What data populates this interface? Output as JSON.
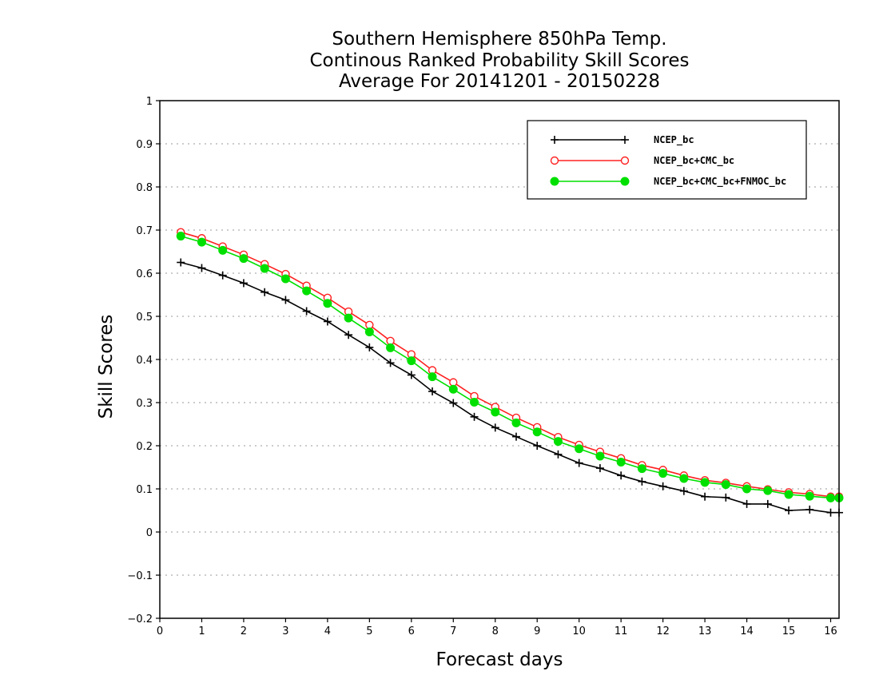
{
  "chart_data": {
    "type": "line",
    "title": [
      "Southern Hemisphere 850hPa Temp.",
      "Continous Ranked Probability Skill Scores",
      "Average For 20141201 - 20150228"
    ],
    "xlabel": "Forecast days",
    "ylabel": "Skill Scores",
    "xlim": [
      0,
      16.2
    ],
    "ylim": [
      -0.2,
      1
    ],
    "xticks": [
      0,
      1,
      2,
      3,
      4,
      5,
      6,
      7,
      8,
      9,
      10,
      11,
      12,
      13,
      14,
      15,
      16
    ],
    "xtick_labels": [
      "0",
      "1",
      "2",
      "3",
      "4",
      "5",
      "6",
      "7",
      "8",
      "9",
      "10",
      "11",
      "12",
      "13",
      "14",
      "15",
      "16"
    ],
    "yticks": [
      -0.2,
      -0.1,
      0,
      0.1,
      0.2,
      0.3,
      0.4,
      0.5,
      0.6,
      0.7,
      0.8,
      0.9,
      1
    ],
    "ytick_labels": [
      "−0.2",
      "−0.1",
      "0",
      "0.1",
      "0.2",
      "0.3",
      "0.4",
      "0.5",
      "0.6",
      "0.7",
      "0.8",
      "0.9",
      "1"
    ],
    "grid": true,
    "legend_position": "top-right",
    "x": [
      0.5,
      1,
      1.5,
      2,
      2.5,
      3,
      3.5,
      4,
      4.5,
      5,
      5.5,
      6,
      6.5,
      7,
      7.5,
      8,
      8.5,
      9,
      9.5,
      10,
      10.5,
      11,
      11.5,
      12,
      12.5,
      13,
      13.5,
      14,
      14.5,
      15,
      15.5,
      16,
      16.2
    ],
    "series": [
      {
        "name": "NCEP_bc",
        "color": "#000000",
        "marker": "plus",
        "values": [
          0.625,
          0.612,
          0.595,
          0.577,
          0.556,
          0.538,
          0.512,
          0.488,
          0.457,
          0.428,
          0.392,
          0.364,
          0.326,
          0.299,
          0.267,
          0.242,
          0.221,
          0.2,
          0.18,
          0.16,
          0.148,
          0.131,
          0.117,
          0.106,
          0.095,
          0.082,
          0.08,
          0.065,
          0.065,
          0.05,
          0.052,
          0.045,
          0.045
        ]
      },
      {
        "name": "NCEP_bc+CMC_bc",
        "color": "#ff2020",
        "marker": "open-circle",
        "values": [
          0.695,
          0.681,
          0.662,
          0.643,
          0.621,
          0.598,
          0.571,
          0.543,
          0.511,
          0.48,
          0.443,
          0.412,
          0.375,
          0.347,
          0.315,
          0.29,
          0.265,
          0.243,
          0.22,
          0.202,
          0.186,
          0.171,
          0.155,
          0.144,
          0.131,
          0.12,
          0.114,
          0.106,
          0.099,
          0.092,
          0.088,
          0.082,
          0.082
        ]
      },
      {
        "name": "NCEP_bc+CMC_bc+FNMOC_bc",
        "color": "#00e000",
        "marker": "filled-circle",
        "values": [
          0.686,
          0.672,
          0.653,
          0.634,
          0.611,
          0.587,
          0.559,
          0.53,
          0.496,
          0.464,
          0.427,
          0.397,
          0.36,
          0.331,
          0.301,
          0.278,
          0.253,
          0.232,
          0.21,
          0.193,
          0.176,
          0.162,
          0.147,
          0.136,
          0.124,
          0.115,
          0.11,
          0.1,
          0.096,
          0.087,
          0.083,
          0.079,
          0.079
        ]
      }
    ]
  }
}
